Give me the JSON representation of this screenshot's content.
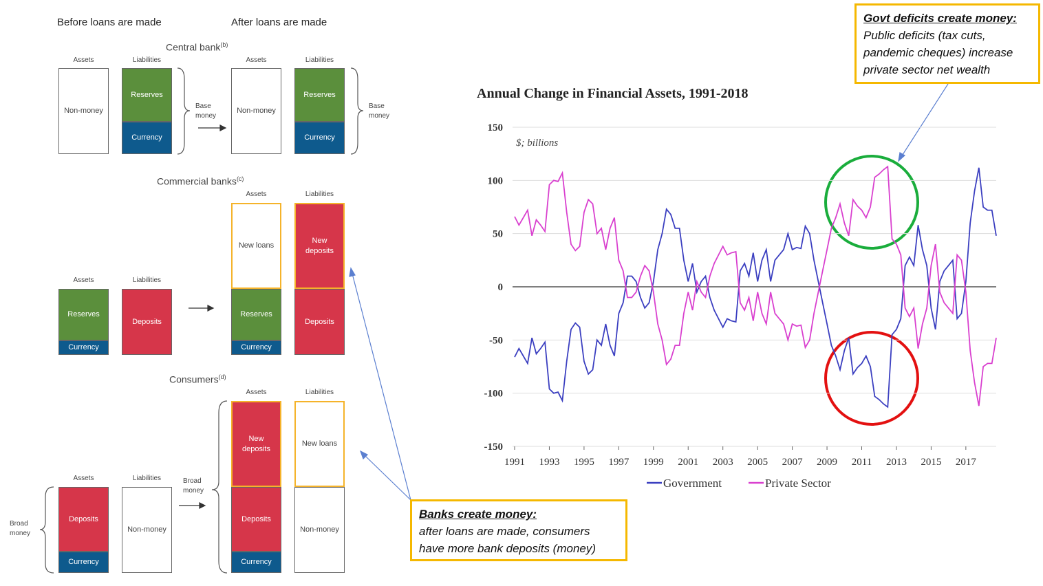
{
  "diagram": {
    "before_heading": "Before loans are made",
    "after_heading": "After loans are made",
    "central_bank": {
      "title": "Central bank",
      "note": "(b)",
      "before": {
        "assets": "Assets",
        "liabilities": "Liabilities",
        "non_money": "Non-money",
        "reserves": "Reserves",
        "currency": "Currency",
        "brace": "Base money"
      },
      "after": {
        "assets": "Assets",
        "liabilities": "Liabilities",
        "non_money": "Non-money",
        "reserves": "Reserves",
        "currency": "Currency",
        "brace": "Base money"
      }
    },
    "commercial_banks": {
      "title": "Commercial banks",
      "note": "(c)",
      "before": {
        "assets": "Assets",
        "liabilities": "Liabilities",
        "reserves": "Reserves",
        "currency": "Currency",
        "deposits": "Deposits"
      },
      "after": {
        "assets": "Assets",
        "liabilities": "Liabilities",
        "new_loans": "New loans",
        "new_deposits": "New deposits",
        "reserves": "Reserves",
        "currency": "Currency",
        "deposits": "Deposits"
      }
    },
    "consumers": {
      "title": "Consumers",
      "note": "(d)",
      "before": {
        "brace": "Broad money",
        "assets": "Assets",
        "liabilities": "Liabilities",
        "deposits": "Deposits",
        "currency": "Currency",
        "non_money": "Non-money"
      },
      "after": {
        "brace": "Broad money",
        "assets": "Assets",
        "liabilities": "Liabilities",
        "new_deposits": "New deposits",
        "deposits": "Deposits",
        "currency": "Currency",
        "new_loans": "New loans",
        "non_money": "Non-money"
      }
    }
  },
  "callouts": [
    {
      "title": "Govt deficits create money:",
      "text": "Public deficits (tax cuts, pandemic cheques) increase private sector net wealth"
    },
    {
      "title": "Banks create money:",
      "text": "after loans are made, consumers have more bank deposits (money)"
    }
  ],
  "chart_data": {
    "type": "line",
    "title": "Annual Change in Financial Assets, 1991-2018",
    "subtitle": "$; billions",
    "x": [
      1991,
      1991.25,
      1991.5,
      1991.75,
      1992,
      1992.25,
      1992.5,
      1992.75,
      1993,
      1993.25,
      1993.5,
      1993.75,
      1994,
      1994.25,
      1994.5,
      1994.75,
      1995,
      1995.25,
      1995.5,
      1995.75,
      1996,
      1996.25,
      1996.5,
      1996.75,
      1997,
      1997.25,
      1997.5,
      1997.75,
      1998,
      1998.25,
      1998.5,
      1998.75,
      1999,
      1999.25,
      1999.5,
      1999.75,
      2000,
      2000.25,
      2000.5,
      2000.75,
      2001,
      2001.25,
      2001.5,
      2001.75,
      2002,
      2002.25,
      2002.5,
      2002.75,
      2003,
      2003.25,
      2003.5,
      2003.75,
      2004,
      2004.25,
      2004.5,
      2004.75,
      2005,
      2005.25,
      2005.5,
      2005.75,
      2006,
      2006.25,
      2006.5,
      2006.75,
      2007,
      2007.25,
      2007.5,
      2007.75,
      2008,
      2008.25,
      2008.5,
      2008.75,
      2009,
      2009.25,
      2009.5,
      2009.75,
      2010,
      2010.25,
      2010.5,
      2010.75,
      2011,
      2011.25,
      2011.5,
      2011.75,
      2012,
      2012.25,
      2012.5,
      2012.75,
      2013,
      2013.25,
      2013.5,
      2013.75,
      2014,
      2014.25,
      2014.5,
      2014.75,
      2015,
      2015.25,
      2015.5,
      2015.75,
      2016,
      2016.25,
      2016.5,
      2016.75,
      2017,
      2017.25,
      2017.5,
      2017.75,
      2018,
      2018.25,
      2018.5,
      2018.75
    ],
    "series": [
      {
        "name": "Government",
        "color": "#3b3fc0",
        "values": [
          -66,
          -58,
          -65,
          -72,
          -48,
          -63,
          -58,
          -52,
          -96,
          -100,
          -99,
          -107,
          -70,
          -40,
          -34,
          -38,
          -70,
          -82,
          -78,
          -50,
          -55,
          -35,
          -55,
          -65,
          -25,
          -15,
          10,
          10,
          5,
          -10,
          -20,
          -15,
          5,
          35,
          50,
          73,
          68,
          55,
          55,
          25,
          5,
          22,
          -5,
          5,
          10,
          -10,
          -22,
          -30,
          -38,
          -30,
          -32,
          -33,
          15,
          22,
          10,
          32,
          5,
          25,
          35,
          5,
          25,
          30,
          35,
          50,
          35,
          37,
          36,
          57,
          50,
          25,
          5,
          -15,
          -35,
          -55,
          -65,
          -78,
          -60,
          -48,
          -82,
          -76,
          -72,
          -65,
          -75,
          -103,
          -106,
          -110,
          -113,
          -45,
          -40,
          -30,
          20,
          28,
          20,
          58,
          35,
          20,
          -20,
          -40,
          5,
          15,
          20,
          25,
          -30,
          -25,
          5,
          60,
          90,
          112,
          75,
          72,
          72,
          48
        ]
      },
      {
        "name": "Private Sector",
        "color": "#d940cf",
        "values": [
          66,
          58,
          65,
          72,
          48,
          63,
          58,
          52,
          96,
          100,
          99,
          107,
          70,
          40,
          34,
          38,
          70,
          82,
          78,
          50,
          55,
          35,
          55,
          65,
          25,
          15,
          -10,
          -10,
          -5,
          10,
          20,
          15,
          -5,
          -35,
          -50,
          -73,
          -68,
          -55,
          -55,
          -25,
          -5,
          -22,
          5,
          -5,
          -10,
          10,
          22,
          30,
          38,
          30,
          32,
          33,
          -15,
          -22,
          -10,
          -32,
          -5,
          -25,
          -35,
          -5,
          -25,
          -30,
          -35,
          -50,
          -35,
          -37,
          -36,
          -57,
          -50,
          -25,
          -5,
          15,
          35,
          55,
          65,
          78,
          60,
          48,
          82,
          76,
          72,
          65,
          75,
          103,
          106,
          110,
          113,
          45,
          40,
          30,
          -20,
          -28,
          -20,
          -58,
          -35,
          -20,
          20,
          40,
          -5,
          -15,
          -20,
          -25,
          30,
          25,
          -5,
          -60,
          -90,
          -112,
          -75,
          -72,
          -72,
          -48
        ]
      }
    ],
    "xlim": [
      1991,
      2018.75
    ],
    "ylim": [
      -150,
      150
    ],
    "xticks": [
      1991,
      1993,
      1995,
      1997,
      1999,
      2001,
      2003,
      2005,
      2007,
      2009,
      2011,
      2013,
      2015,
      2017
    ],
    "yticks": [
      -150,
      -100,
      -50,
      0,
      50,
      100,
      150
    ],
    "grid": true,
    "legend": "bottom"
  }
}
